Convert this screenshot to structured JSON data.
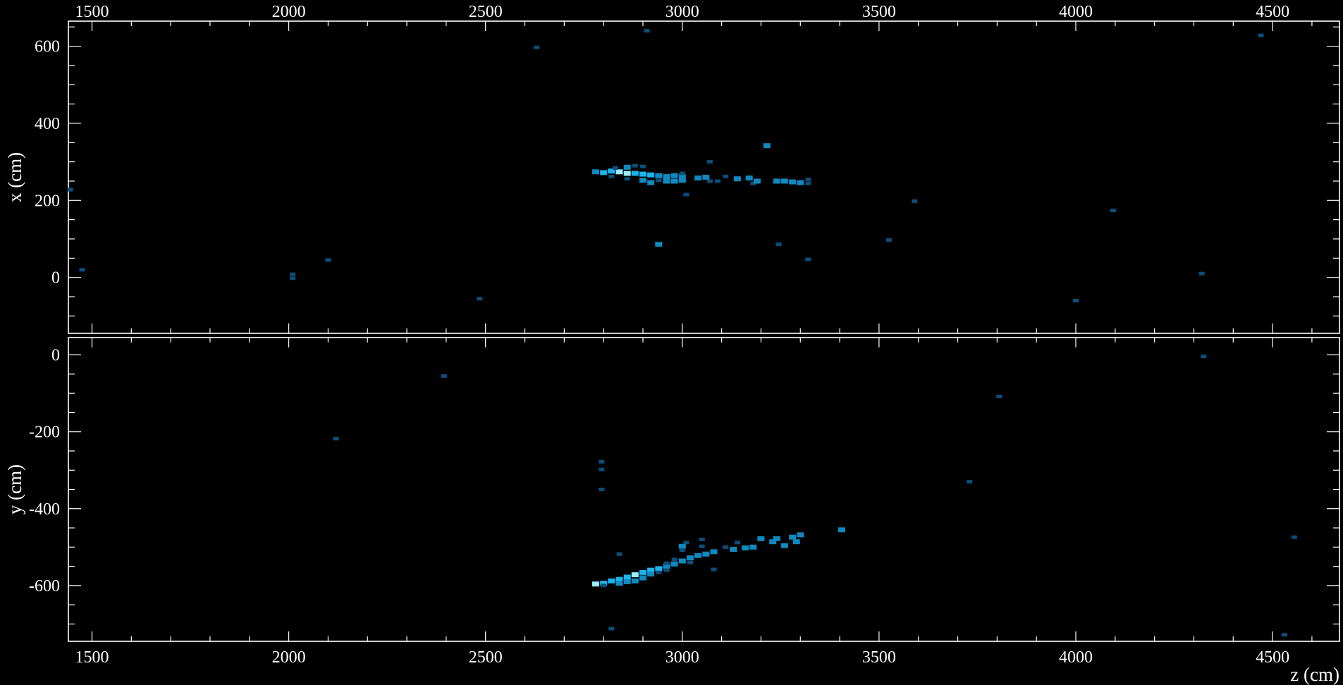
{
  "chart_data": [
    {
      "type": "heatmap",
      "panel": "top",
      "xlabel": "",
      "ylabel": "x (cm)",
      "xlim": [
        1440,
        4670
      ],
      "ylim": [
        -145,
        665
      ],
      "x_ticks": [
        "1500",
        "2000",
        "2500",
        "3000",
        "3500",
        "4000",
        "4500"
      ],
      "x_tick_values": [
        1500,
        2000,
        2500,
        3000,
        3500,
        4000,
        4500
      ],
      "x_tick_position": "top",
      "y_ticks": [
        "600",
        "400",
        "200",
        "0"
      ],
      "y_tick_values": [
        600,
        400,
        200,
        0
      ],
      "grid": false,
      "hits": [
        {
          "z": 1445,
          "x": 228,
          "level": 1
        },
        {
          "z": 1475,
          "x": 20,
          "level": 1
        },
        {
          "z": 2010,
          "x": 8,
          "level": 1
        },
        {
          "z": 2010,
          "x": -2,
          "level": 1
        },
        {
          "z": 2100,
          "x": 45,
          "level": 1
        },
        {
          "z": 2485,
          "x": -55,
          "level": 1
        },
        {
          "z": 2630,
          "x": 597,
          "level": 1
        },
        {
          "z": 2910,
          "x": 640,
          "level": 1
        },
        {
          "z": 2940,
          "x": 86,
          "level": 2
        },
        {
          "z": 3010,
          "x": 215,
          "level": 1
        },
        {
          "z": 3070,
          "x": 300,
          "level": 1
        },
        {
          "z": 3215,
          "x": 342,
          "level": 2
        },
        {
          "z": 3245,
          "x": 86,
          "level": 1
        },
        {
          "z": 3320,
          "x": 47,
          "level": 1
        },
        {
          "z": 3525,
          "x": 97,
          "level": 1
        },
        {
          "z": 3590,
          "x": 198,
          "level": 1
        },
        {
          "z": 4000,
          "x": -60,
          "level": 1
        },
        {
          "z": 4095,
          "x": 174,
          "level": 1
        },
        {
          "z": 4320,
          "x": 10,
          "level": 1
        },
        {
          "z": 4470,
          "x": 628,
          "level": 1
        },
        {
          "z": 2780,
          "x": 274,
          "level": 2
        },
        {
          "z": 2800,
          "x": 272,
          "level": 3
        },
        {
          "z": 2820,
          "x": 276,
          "level": 3
        },
        {
          "z": 2840,
          "x": 274,
          "level": 4
        },
        {
          "z": 2860,
          "x": 270,
          "level": 4
        },
        {
          "z": 2880,
          "x": 270,
          "level": 3
        },
        {
          "z": 2900,
          "x": 268,
          "level": 3
        },
        {
          "z": 2920,
          "x": 266,
          "level": 3
        },
        {
          "z": 2940,
          "x": 264,
          "level": 2
        },
        {
          "z": 2960,
          "x": 262,
          "level": 2
        },
        {
          "z": 2980,
          "x": 264,
          "level": 2
        },
        {
          "z": 3000,
          "x": 262,
          "level": 2
        },
        {
          "z": 2830,
          "x": 284,
          "level": 1
        },
        {
          "z": 2860,
          "x": 286,
          "level": 2
        },
        {
          "z": 2880,
          "x": 290,
          "level": 1
        },
        {
          "z": 2900,
          "x": 288,
          "level": 1
        },
        {
          "z": 2820,
          "x": 262,
          "level": 1
        },
        {
          "z": 2860,
          "x": 256,
          "level": 1
        },
        {
          "z": 2900,
          "x": 252,
          "level": 2
        },
        {
          "z": 2920,
          "x": 246,
          "level": 2
        },
        {
          "z": 2940,
          "x": 252,
          "level": 1
        },
        {
          "z": 2960,
          "x": 250,
          "level": 2
        },
        {
          "z": 2980,
          "x": 250,
          "level": 2
        },
        {
          "z": 3000,
          "x": 252,
          "level": 2
        },
        {
          "z": 3000,
          "x": 270,
          "level": 1
        },
        {
          "z": 3040,
          "x": 258,
          "level": 2
        },
        {
          "z": 3060,
          "x": 260,
          "level": 2
        },
        {
          "z": 3070,
          "x": 250,
          "level": 1
        },
        {
          "z": 3090,
          "x": 250,
          "level": 1
        },
        {
          "z": 3110,
          "x": 262,
          "level": 1
        },
        {
          "z": 3140,
          "x": 256,
          "level": 2
        },
        {
          "z": 3170,
          "x": 258,
          "level": 2
        },
        {
          "z": 3180,
          "x": 244,
          "level": 1
        },
        {
          "z": 3190,
          "x": 250,
          "level": 2
        },
        {
          "z": 3240,
          "x": 250,
          "level": 2
        },
        {
          "z": 3260,
          "x": 250,
          "level": 2
        },
        {
          "z": 3280,
          "x": 248,
          "level": 2
        },
        {
          "z": 3300,
          "x": 246,
          "level": 2
        },
        {
          "z": 3320,
          "x": 254,
          "level": 1
        },
        {
          "z": 3320,
          "x": 244,
          "level": 1
        }
      ]
    },
    {
      "type": "heatmap",
      "panel": "bottom",
      "xlabel": "z (cm)",
      "ylabel": "y (cm)",
      "xlim": [
        1440,
        4670
      ],
      "ylim": [
        -745,
        45
      ],
      "x_ticks": [
        "1500",
        "2000",
        "2500",
        "3000",
        "3500",
        "4000",
        "4500"
      ],
      "x_tick_values": [
        1500,
        2000,
        2500,
        3000,
        3500,
        4000,
        4500
      ],
      "x_tick_position": "bottom",
      "y_ticks": [
        "0",
        "-200",
        "-400",
        "-600"
      ],
      "y_tick_values": [
        0,
        -200,
        -400,
        -600
      ],
      "grid": false,
      "hits": [
        {
          "z": 2120,
          "y": -218,
          "level": 1
        },
        {
          "z": 2395,
          "y": -55,
          "level": 1
        },
        {
          "z": 2795,
          "y": -278,
          "level": 1
        },
        {
          "z": 2795,
          "y": -298,
          "level": 1
        },
        {
          "z": 2795,
          "y": -350,
          "level": 1
        },
        {
          "z": 2820,
          "y": -712,
          "level": 1
        },
        {
          "z": 2840,
          "y": -518,
          "level": 1
        },
        {
          "z": 3010,
          "y": -488,
          "level": 1
        },
        {
          "z": 3050,
          "y": -480,
          "level": 1
        },
        {
          "z": 3080,
          "y": -558,
          "level": 1
        },
        {
          "z": 3405,
          "y": -455,
          "level": 2
        },
        {
          "z": 3730,
          "y": -330,
          "level": 1
        },
        {
          "z": 3805,
          "y": -108,
          "level": 1
        },
        {
          "z": 4325,
          "y": -4,
          "level": 1
        },
        {
          "z": 4530,
          "y": -728,
          "level": 1
        },
        {
          "z": 4555,
          "y": -474,
          "level": 1
        },
        {
          "z": 2780,
          "y": -596,
          "level": 4
        },
        {
          "z": 2800,
          "y": -594,
          "level": 3
        },
        {
          "z": 2820,
          "y": -588,
          "level": 3
        },
        {
          "z": 2840,
          "y": -584,
          "level": 3
        },
        {
          "z": 2860,
          "y": -578,
          "level": 3
        },
        {
          "z": 2880,
          "y": -572,
          "level": 4
        },
        {
          "z": 2900,
          "y": -566,
          "level": 3
        },
        {
          "z": 2920,
          "y": -560,
          "level": 3
        },
        {
          "z": 2940,
          "y": -556,
          "level": 3
        },
        {
          "z": 2960,
          "y": -550,
          "level": 2
        },
        {
          "z": 2980,
          "y": -544,
          "level": 2
        },
        {
          "z": 3000,
          "y": -536,
          "level": 2
        },
        {
          "z": 3020,
          "y": -528,
          "level": 2
        },
        {
          "z": 3040,
          "y": -522,
          "level": 2
        },
        {
          "z": 3060,
          "y": -518,
          "level": 2
        },
        {
          "z": 3080,
          "y": -512,
          "level": 2
        },
        {
          "z": 2800,
          "y": -600,
          "level": 1
        },
        {
          "z": 2840,
          "y": -594,
          "level": 2
        },
        {
          "z": 2860,
          "y": -590,
          "level": 2
        },
        {
          "z": 2880,
          "y": -588,
          "level": 2
        },
        {
          "z": 2900,
          "y": -580,
          "level": 2
        },
        {
          "z": 2920,
          "y": -570,
          "level": 2
        },
        {
          "z": 2940,
          "y": -566,
          "level": 1
        },
        {
          "z": 2960,
          "y": -560,
          "level": 1
        },
        {
          "z": 2960,
          "y": -542,
          "level": 1
        },
        {
          "z": 2980,
          "y": -532,
          "level": 1
        },
        {
          "z": 3000,
          "y": -498,
          "level": 2
        },
        {
          "z": 3000,
          "y": -508,
          "level": 1
        },
        {
          "z": 3020,
          "y": -540,
          "level": 1
        },
        {
          "z": 3050,
          "y": -498,
          "level": 1
        },
        {
          "z": 3110,
          "y": -500,
          "level": 1
        },
        {
          "z": 3130,
          "y": -506,
          "level": 2
        },
        {
          "z": 3140,
          "y": -488,
          "level": 1
        },
        {
          "z": 3160,
          "y": -502,
          "level": 2
        },
        {
          "z": 3180,
          "y": -500,
          "level": 2
        },
        {
          "z": 3200,
          "y": -478,
          "level": 2
        },
        {
          "z": 3230,
          "y": -486,
          "level": 2
        },
        {
          "z": 3240,
          "y": -478,
          "level": 2
        },
        {
          "z": 3260,
          "y": -496,
          "level": 2
        },
        {
          "z": 3280,
          "y": -474,
          "level": 2
        },
        {
          "z": 3290,
          "y": -486,
          "level": 2
        },
        {
          "z": 3300,
          "y": -468,
          "level": 2
        }
      ]
    }
  ],
  "colors": {
    "background": "#000000",
    "frame": "#ffffff",
    "text": "#ffffff",
    "palette": [
      "#000000",
      "#0a4f7d",
      "#0f89c0",
      "#1bb4ef",
      "#9ceeff"
    ]
  }
}
